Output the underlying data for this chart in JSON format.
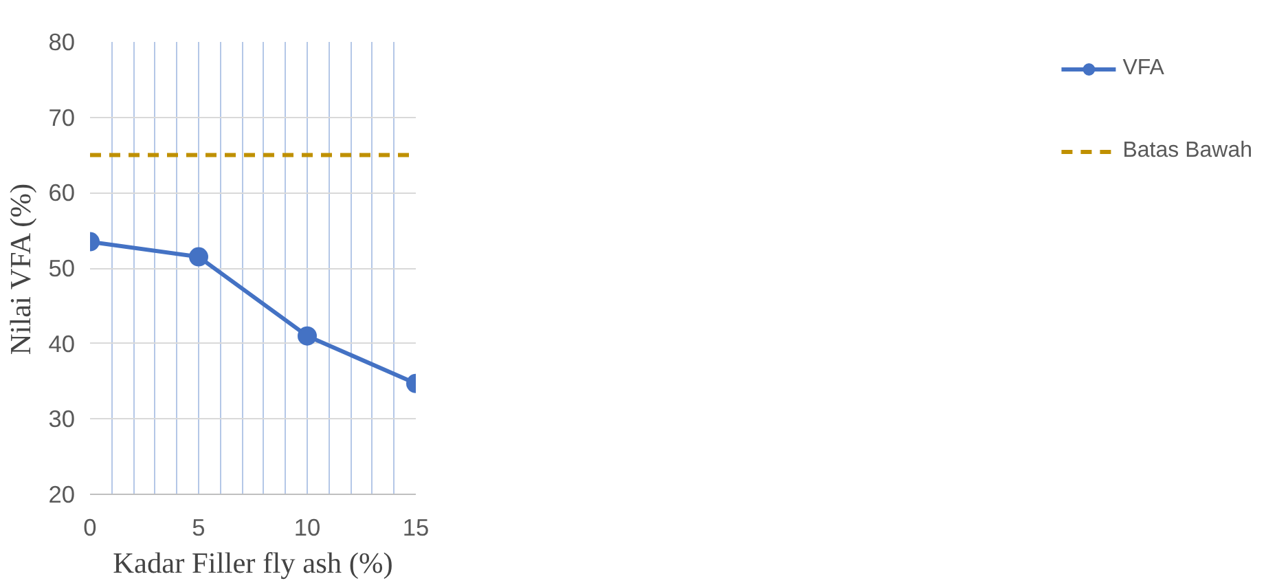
{
  "chart_data": {
    "type": "line",
    "xlabel": "Kadar Filler fly ash (%)",
    "ylabel": "Nilai VFA (%)",
    "xlim": [
      0,
      15
    ],
    "ylim": [
      20,
      80
    ],
    "xticks": [
      0,
      {
        "value": 1,
        "label": null
      },
      {
        "value": 2,
        "label": null
      },
      {
        "value": 3,
        "label": null
      },
      {
        "value": 4,
        "label": null
      },
      5,
      {
        "value": 6,
        "label": null
      },
      {
        "value": 7,
        "label": null
      },
      {
        "value": 8,
        "label": null
      },
      {
        "value": 9,
        "label": null
      },
      10,
      {
        "value": 11,
        "label": null
      },
      {
        "value": 12,
        "label": null
      },
      {
        "value": 13,
        "label": null
      },
      {
        "value": 14,
        "label": null
      },
      15
    ],
    "yticks": [
      20,
      30,
      40,
      50,
      60,
      70,
      80
    ],
    "grid": true,
    "legend": "right",
    "x": [
      0,
      5,
      10,
      15
    ],
    "series": [
      {
        "name": "VFA",
        "color": "#4472c4",
        "values": [
          53.5,
          51.5,
          41,
          34.7
        ],
        "marker": "circle",
        "line_style": "solid"
      },
      {
        "name": "Batas Bawah",
        "color": "#bf9000",
        "values": [
          65,
          65,
          65,
          65
        ],
        "marker": "none",
        "line_style": "dashed"
      }
    ]
  }
}
